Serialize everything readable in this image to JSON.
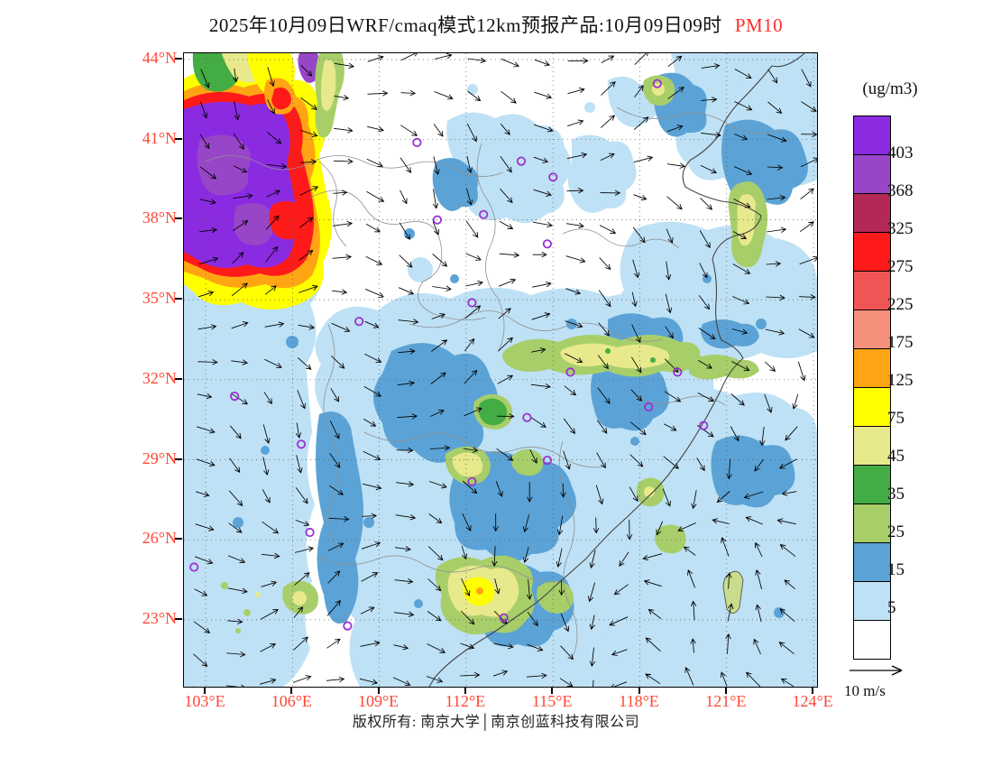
{
  "title": {
    "main": "2025年10月09日WRF/cmaq模式12km预报产品:10月09日09时",
    "pollutant": "PM10"
  },
  "colors": {
    "title_pollutant": "#FF2D2D",
    "axis_labels": "#FF4633",
    "station_marker": "#9B30D0",
    "wind_arrow": "#000000"
  },
  "axes": {
    "lat_labels": [
      "44°N",
      "41°N",
      "38°N",
      "35°N",
      "32°N",
      "29°N",
      "26°N",
      "23°N"
    ],
    "lon_labels": [
      "103°E",
      "106°E",
      "109°E",
      "112°E",
      "115°E",
      "118°E",
      "121°E",
      "124°E"
    ]
  },
  "legend": {
    "unit_label": "(ug/m3)",
    "levels_top_to_bottom": [
      "403",
      "368",
      "325",
      "275",
      "225",
      "175",
      "125",
      "75",
      "45",
      "35",
      "25",
      "15",
      "5"
    ],
    "cell_colors_top_to_bottom": [
      "#8A2BE2",
      "#9846C8",
      "#B42858",
      "#FF1A1A",
      "#F05555",
      "#F5917B",
      "#FFA514",
      "#FFFF00",
      "#E8E88C",
      "#44AC44",
      "#A8CE6A",
      "#5BA3D6",
      "#BEE1F5",
      "#FFFFFF"
    ]
  },
  "wind_scale": {
    "label": "10 m/s"
  },
  "footer": {
    "text": "版权所有: 南京大学│南京创蓝科技有限公司"
  },
  "chart_data": {
    "type": "heatmap",
    "title": "2025年10月09日WRF/cmaq模式12km预报产品:10月09日09时 PM10",
    "variable": "PM10",
    "units": "ug/m3",
    "x_axis": {
      "label": "longitude",
      "ticks": [
        "103°E",
        "106°E",
        "109°E",
        "112°E",
        "115°E",
        "118°E",
        "121°E",
        "124°E"
      ]
    },
    "y_axis": {
      "label": "latitude",
      "ticks": [
        "44°N",
        "41°N",
        "38°N",
        "35°N",
        "32°N",
        "29°N",
        "26°N",
        "23°N"
      ]
    },
    "contour_levels": [
      5,
      15,
      25,
      35,
      45,
      75,
      125,
      175,
      225,
      275,
      325,
      368,
      403
    ],
    "level_colors_low_to_high": [
      "#FFFFFF",
      "#BEE1F5",
      "#5BA3D6",
      "#A8CE6A",
      "#44AC44",
      "#E8E88C",
      "#FFFF00",
      "#FFA514",
      "#F5917B",
      "#F05555",
      "#FF1A1A",
      "#B42858",
      "#9846C8",
      "#8A2BE2"
    ],
    "legend_position": "right",
    "wind_vectors": {
      "reference_speed": 10,
      "units": "m/s"
    },
    "features": [
      {
        "name": "northwest-dust-hotspot",
        "lon_range": [
          102.5,
          107.5
        ],
        "lat_range": [
          36,
          42.5
        ],
        "level": ">403"
      },
      {
        "name": "huanghuai-jiangsu-band",
        "lon_range": [
          113,
          121
        ],
        "lat_range": [
          32,
          34
        ],
        "level": "25-125"
      },
      {
        "name": "south-china-patches",
        "lon_range": [
          105,
          116
        ],
        "lat_range": [
          22,
          25.5
        ],
        "level": "35-125"
      },
      {
        "name": "sichuan-chongqing-basin",
        "lon_range": [
          104,
          110
        ],
        "lat_range": [
          28,
          32
        ],
        "level": "15-25"
      },
      {
        "name": "background",
        "level": "5-15"
      }
    ],
    "stations": [
      [
        110.3,
        40.9
      ],
      [
        113.9,
        40.2
      ],
      [
        115.0,
        39.6
      ],
      [
        112.6,
        38.2
      ],
      [
        111.0,
        38.0
      ],
      [
        114.8,
        37.1
      ],
      [
        112.2,
        34.9
      ],
      [
        108.3,
        34.2
      ],
      [
        115.6,
        32.3
      ],
      [
        119.3,
        32.3
      ],
      [
        118.3,
        31.0
      ],
      [
        104.0,
        31.4
      ],
      [
        106.3,
        29.6
      ],
      [
        102.6,
        25.0
      ],
      [
        106.6,
        26.3
      ],
      [
        107.9,
        22.8
      ],
      [
        112.2,
        28.2
      ],
      [
        114.8,
        29.0
      ],
      [
        114.1,
        30.6
      ],
      [
        118.6,
        43.1
      ],
      [
        120.2,
        30.3
      ],
      [
        113.3,
        23.1
      ]
    ]
  }
}
